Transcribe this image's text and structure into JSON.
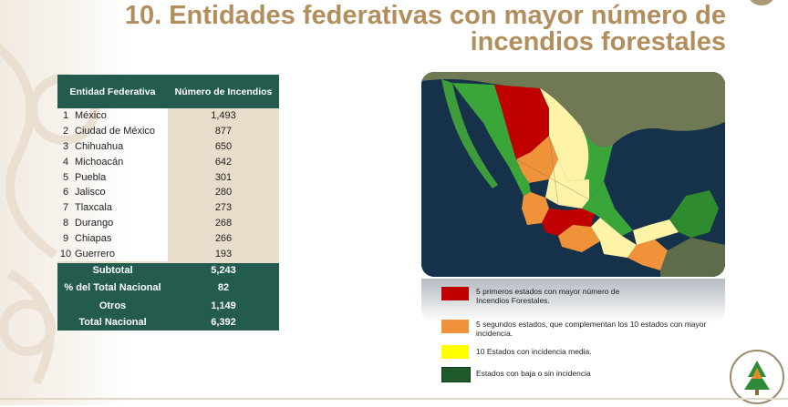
{
  "title": {
    "line1": "10. Entidades federativas con mayor número de",
    "line2": "incendios forestales"
  },
  "table": {
    "headers": [
      "Entidad Federativa",
      "Número de Incendios"
    ],
    "rows": [
      {
        "rank": "1",
        "state": "México",
        "value": "1,493"
      },
      {
        "rank": "2",
        "state": "Ciudad de México",
        "value": "877"
      },
      {
        "rank": "3",
        "state": "Chihuahua",
        "value": "650"
      },
      {
        "rank": "4",
        "state": "Michoacán",
        "value": "642"
      },
      {
        "rank": "5",
        "state": "Puebla",
        "value": "301"
      },
      {
        "rank": "6",
        "state": "Jalisco",
        "value": "280"
      },
      {
        "rank": "7",
        "state": "Tlaxcala",
        "value": "273"
      },
      {
        "rank": "8",
        "state": "Durango",
        "value": "268"
      },
      {
        "rank": "9",
        "state": "Chiapas",
        "value": "266"
      },
      {
        "rank": "10",
        "state": "Guerrero",
        "value": "193"
      }
    ],
    "summary": [
      {
        "label": "Subtotal",
        "value": "5,243"
      },
      {
        "label": "% del Total Nacional",
        "value": "82"
      },
      {
        "label": "Otros",
        "value": "1,149"
      },
      {
        "label": "Total Nacional",
        "value": "6,392"
      }
    ]
  },
  "legend": [
    {
      "color": "#c00000",
      "text": "5 primeros estados con mayor número de Incendios Forestales."
    },
    {
      "color": "#f0923a",
      "text": "5 segundos estados, que complementan los 10 estados con mayor incidencia."
    },
    {
      "color": "#ffff00",
      "text": "10 Estados con incidencia media."
    },
    {
      "color": "#1e5a2a",
      "text": "Estados con baja o sin incidencia"
    }
  ],
  "colors": {
    "title": "#b38e5d",
    "table_header": "#235b4e",
    "table_value_bg": "#e8dccb",
    "top5": "#c00000",
    "next5": "#f0923a",
    "medium": "#fff3a8",
    "low": "#3aa63a",
    "ocean": "#16324a"
  },
  "icons": {
    "map": "mexico-map",
    "seal": "seal-logo-icon"
  }
}
